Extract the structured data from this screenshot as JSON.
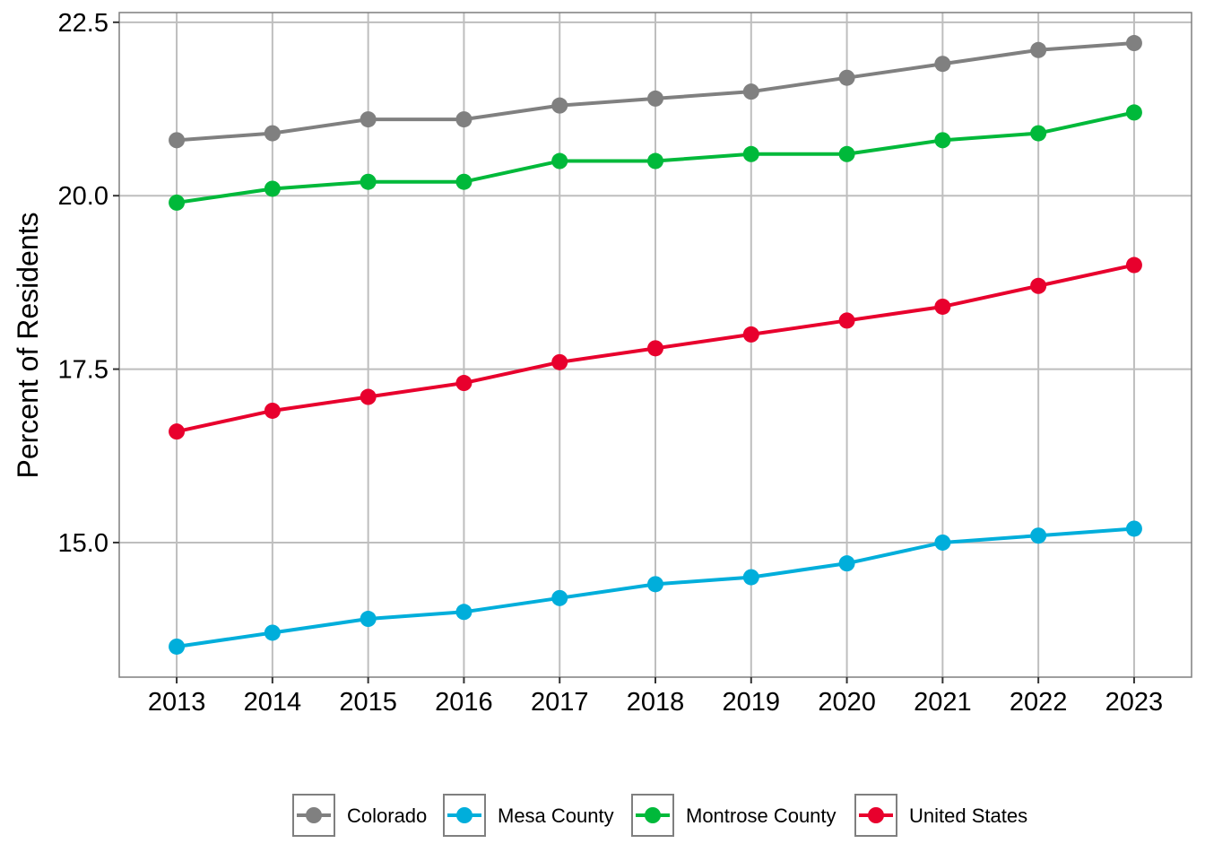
{
  "chart_data": {
    "type": "line",
    "title": "",
    "xlabel": "",
    "ylabel": "Percent of Residents",
    "x": [
      2013,
      2014,
      2015,
      2016,
      2017,
      2018,
      2019,
      2020,
      2021,
      2022,
      2023
    ],
    "x_tick_labels": [
      "2013",
      "2014",
      "2015",
      "2016",
      "2017",
      "2018",
      "2019",
      "2020",
      "2021",
      "2022",
      "2023"
    ],
    "y_ticks": [
      15.0,
      17.5,
      20.0,
      22.5
    ],
    "y_tick_labels": [
      "15.0",
      "17.5",
      "20.0",
      "22.5"
    ],
    "ylim": [
      13.06,
      22.64
    ],
    "xlim": [
      2012.4,
      2023.6
    ],
    "grid": true,
    "legend_position": "bottom",
    "series": [
      {
        "name": "Colorado",
        "color": "#808080",
        "values": [
          20.8,
          20.9,
          21.1,
          21.1,
          21.3,
          21.4,
          21.5,
          21.7,
          21.9,
          22.1,
          22.2
        ]
      },
      {
        "name": "Mesa County",
        "color": "#00AEDB",
        "values": [
          13.5,
          13.7,
          13.9,
          14.0,
          14.2,
          14.4,
          14.5,
          14.7,
          15.0,
          15.1,
          15.2
        ]
      },
      {
        "name": "Montrose County",
        "color": "#00B93A",
        "values": [
          19.9,
          20.1,
          20.2,
          20.2,
          20.5,
          20.5,
          20.6,
          20.6,
          20.8,
          20.9,
          21.2
        ]
      },
      {
        "name": "United States",
        "color": "#E8002D",
        "values": [
          16.6,
          16.9,
          17.1,
          17.3,
          17.6,
          17.8,
          18.0,
          18.2,
          18.4,
          18.7,
          19.0
        ]
      }
    ]
  }
}
